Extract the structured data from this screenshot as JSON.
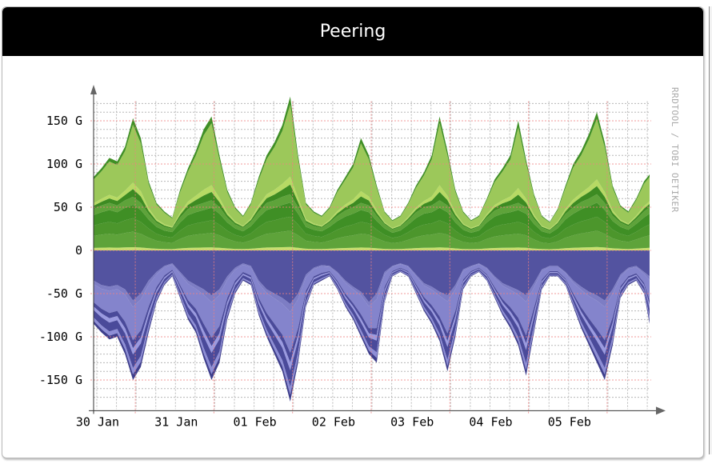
{
  "panel": {
    "title": "Peering"
  },
  "chart_data": {
    "type": "area",
    "stacked": true,
    "title": "Peering",
    "watermark": "RRDTOOL / TOBI OETIKER",
    "xlabel": "",
    "ylabel": "",
    "unit": "bits/s",
    "ylim": [
      -180,
      180
    ],
    "yticks": [
      {
        "value": 150,
        "label": "150 G"
      },
      {
        "value": 100,
        "label": "100 G"
      },
      {
        "value": 50,
        "label": "50 G"
      },
      {
        "value": 0,
        "label": "0"
      },
      {
        "value": -50,
        "label": "-50 G"
      },
      {
        "value": -100,
        "label": "-100 G"
      },
      {
        "value": -150,
        "label": "-150 G"
      }
    ],
    "xlim_days": [
      0,
      7.07
    ],
    "xticks": [
      {
        "day": 0.0,
        "label": "30 Jan"
      },
      {
        "day": 1.0,
        "label": "31 Jan"
      },
      {
        "day": 2.0,
        "label": "01 Feb"
      },
      {
        "day": 3.0,
        "label": "02 Feb"
      },
      {
        "day": 4.0,
        "label": "03 Feb"
      },
      {
        "day": 5.0,
        "label": "04 Feb"
      },
      {
        "day": 6.0,
        "label": "05 Feb"
      }
    ],
    "major_grid_days": [
      0.53,
      1.53,
      2.53,
      3.53,
      4.53,
      5.53,
      6.53
    ],
    "minor_grid_hours": 6,
    "major_grid_y": 50,
    "minor_grid_y": 10,
    "grid": true,
    "colors": {
      "in_layers": [
        "#c8e070",
        "#5ea33a",
        "#4c962c",
        "#a9d05c",
        "#3f8f25",
        "#b7da64",
        "#9cc85a",
        "#3d8b22"
      ],
      "out_layers": [
        "#5353a0",
        "#8484cc",
        "#7d7dc4",
        "#4a4a9a",
        "#9a9ae0",
        "#8e8ed6",
        "#3e3e8c"
      ],
      "major_grid": "#f08080",
      "minor_grid": "#b8b8b8",
      "axis": "#555555"
    },
    "x_days": [
      0.0,
      0.1,
      0.2,
      0.3,
      0.4,
      0.5,
      0.6,
      0.7,
      0.8,
      0.9,
      1.0,
      1.1,
      1.2,
      1.3,
      1.4,
      1.5,
      1.6,
      1.7,
      1.8,
      1.9,
      2.0,
      2.1,
      2.2,
      2.3,
      2.4,
      2.5,
      2.6,
      2.7,
      2.8,
      2.9,
      3.0,
      3.1,
      3.2,
      3.3,
      3.4,
      3.5,
      3.6,
      3.7,
      3.8,
      3.9,
      4.0,
      4.1,
      4.2,
      4.3,
      4.4,
      4.5,
      4.6,
      4.7,
      4.8,
      4.9,
      5.0,
      5.1,
      5.2,
      5.3,
      5.4,
      5.5,
      5.6,
      5.7,
      5.8,
      5.9,
      6.0,
      6.1,
      6.2,
      6.3,
      6.4,
      6.5,
      6.6,
      6.7,
      6.8,
      6.9,
      7.0,
      7.07
    ],
    "in_total": [
      85,
      95,
      107,
      103,
      120,
      153,
      130,
      80,
      55,
      45,
      38,
      70,
      95,
      115,
      140,
      155,
      110,
      70,
      50,
      40,
      55,
      85,
      110,
      125,
      145,
      178,
      110,
      55,
      45,
      40,
      50,
      70,
      85,
      100,
      130,
      110,
      75,
      45,
      35,
      40,
      55,
      75,
      90,
      110,
      155,
      115,
      70,
      45,
      35,
      40,
      60,
      82,
      95,
      110,
      150,
      105,
      65,
      40,
      33,
      48,
      75,
      100,
      115,
      135,
      160,
      125,
      75,
      52,
      45,
      60,
      80,
      88
    ],
    "in_mid": [
      48,
      52,
      55,
      52,
      58,
      62,
      55,
      42,
      32,
      27,
      25,
      38,
      48,
      52,
      55,
      58,
      50,
      38,
      30,
      26,
      33,
      45,
      55,
      58,
      62,
      65,
      50,
      32,
      28,
      26,
      32,
      40,
      46,
      50,
      55,
      52,
      40,
      30,
      24,
      27,
      35,
      44,
      50,
      52,
      58,
      52,
      38,
      28,
      24,
      27,
      38,
      46,
      50,
      52,
      55,
      50,
      36,
      26,
      23,
      30,
      42,
      50,
      56,
      60,
      65,
      55,
      40,
      32,
      28,
      36,
      45,
      50
    ],
    "out_total": [
      -85,
      -95,
      -103,
      -100,
      -120,
      -150,
      -135,
      -95,
      -60,
      -40,
      -30,
      -55,
      -80,
      -95,
      -125,
      -150,
      -130,
      -80,
      -50,
      -35,
      -40,
      -75,
      -100,
      -120,
      -140,
      -175,
      -130,
      -65,
      -40,
      -35,
      -30,
      -45,
      -65,
      -80,
      -100,
      -120,
      -130,
      -60,
      -30,
      -25,
      -30,
      -50,
      -70,
      -85,
      -105,
      -140,
      -100,
      -45,
      -30,
      -25,
      -35,
      -55,
      -75,
      -90,
      -110,
      -145,
      -95,
      -45,
      -30,
      -30,
      -40,
      -65,
      -90,
      -110,
      -130,
      -150,
      -110,
      -55,
      -40,
      -35,
      -50,
      -85
    ],
    "out_base": [
      -35,
      -40,
      -42,
      -40,
      -45,
      -58,
      -50,
      -35,
      -25,
      -18,
      -15,
      -25,
      -35,
      -40,
      -45,
      -52,
      -45,
      -30,
      -20,
      -15,
      -18,
      -35,
      -45,
      -50,
      -55,
      -62,
      -50,
      -28,
      -20,
      -17,
      -18,
      -25,
      -35,
      -42,
      -48,
      -60,
      -50,
      -25,
      -18,
      -15,
      -18,
      -28,
      -38,
      -42,
      -48,
      -52,
      -40,
      -22,
      -18,
      -15,
      -20,
      -30,
      -38,
      -42,
      -46,
      -52,
      -38,
      -22,
      -18,
      -18,
      -25,
      -35,
      -42,
      -48,
      -52,
      -58,
      -45,
      -28,
      -20,
      -18,
      -25,
      -30
    ]
  }
}
